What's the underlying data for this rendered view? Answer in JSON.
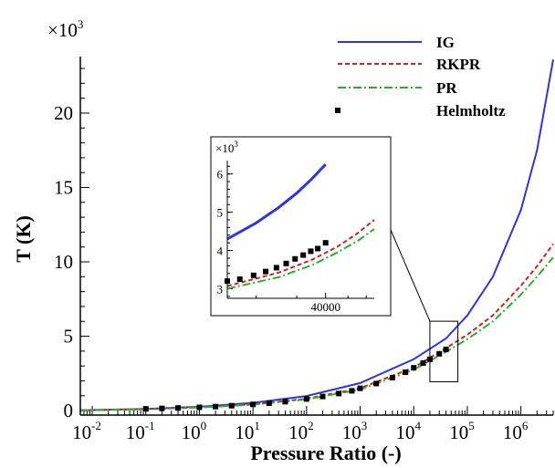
{
  "chart_data": {
    "type": "line",
    "xscale": "log",
    "xlabel": "Pressure Ratio (-)",
    "ylabel": "T (K)",
    "y_multiplier_label": "×10",
    "y_multiplier_exp": "3",
    "xlim": [
      0.006,
      4000000
    ],
    "ylim": [
      -0.3,
      23.8
    ],
    "x_ticks": [
      {
        "value": 0.01,
        "base": "10",
        "exp": "-2"
      },
      {
        "value": 0.1,
        "base": "10",
        "exp": "-1"
      },
      {
        "value": 1,
        "base": "10",
        "exp": "0"
      },
      {
        "value": 10,
        "base": "10",
        "exp": "1"
      },
      {
        "value": 100,
        "base": "10",
        "exp": "2"
      },
      {
        "value": 1000,
        "base": "10",
        "exp": "3"
      },
      {
        "value": 10000,
        "base": "10",
        "exp": "4"
      },
      {
        "value": 100000,
        "base": "10",
        "exp": "5"
      },
      {
        "value": 1000000,
        "base": "10",
        "exp": "6"
      }
    ],
    "y_ticks": [
      {
        "value": 0,
        "label": "0"
      },
      {
        "value": 5,
        "label": "5"
      },
      {
        "value": 10,
        "label": "10"
      },
      {
        "value": 15,
        "label": "15"
      },
      {
        "value": 20,
        "label": "20"
      }
    ],
    "legend_position": "top-right",
    "series": [
      {
        "name": "IG",
        "style": "solid",
        "color": "#2b35e0",
        "x": [
          0.006,
          0.01,
          0.1,
          1,
          10,
          100,
          1000,
          10000,
          40000,
          100000,
          300000,
          1000000,
          2000000,
          4000000
        ],
        "y": [
          0.02,
          0.04,
          0.12,
          0.26,
          0.52,
          0.98,
          1.85,
          3.45,
          4.85,
          6.4,
          9.0,
          13.5,
          17.5,
          23.6
        ]
      },
      {
        "name": "RKPR",
        "style": "dashed",
        "color": "#d42020",
        "x": [
          0.006,
          0.01,
          0.1,
          1,
          10,
          100,
          1000,
          10000,
          40000,
          100000,
          300000,
          1000000,
          2000000,
          4000000
        ],
        "y": [
          0.02,
          0.04,
          0.1,
          0.22,
          0.42,
          0.8,
          1.5,
          2.9,
          4.2,
          5.1,
          6.4,
          8.4,
          9.7,
          11.2
        ]
      },
      {
        "name": "PR",
        "style": "dashdot",
        "color": "#22b422",
        "x": [
          0.006,
          0.01,
          0.1,
          1,
          10,
          100,
          1000,
          10000,
          40000,
          100000,
          300000,
          1000000,
          2000000,
          4000000
        ],
        "y": [
          0.02,
          0.04,
          0.1,
          0.21,
          0.4,
          0.76,
          1.42,
          2.75,
          3.95,
          4.8,
          6.0,
          7.8,
          9.0,
          10.3
        ]
      },
      {
        "name": "Helmholtz",
        "style": "markers",
        "color": "#000000",
        "x": [
          0.1,
          0.2,
          0.4,
          1,
          2,
          4,
          10,
          20,
          40,
          100,
          200,
          400,
          700,
          1000,
          2000,
          4000,
          7000,
          10000,
          15000,
          20000,
          30000,
          40000
        ],
        "y": [
          0.12,
          0.15,
          0.18,
          0.22,
          0.27,
          0.33,
          0.42,
          0.5,
          0.6,
          0.78,
          0.95,
          1.15,
          1.33,
          1.5,
          1.82,
          2.22,
          2.58,
          2.88,
          3.2,
          3.45,
          3.82,
          4.12
        ]
      }
    ],
    "inset": {
      "zoom_box": {
        "xlim": [
          20000,
          45000
        ],
        "ylim": [
          2.8,
          6.5
        ]
      },
      "y_multiplier_label": "×10",
      "y_multiplier_exp": "3",
      "xlim": [
        15000,
        65000
      ],
      "ylim": [
        2.75,
        6.35
      ],
      "x_ticks": [
        {
          "value": 40000,
          "label": "40000"
        }
      ],
      "y_ticks": [
        {
          "value": 3,
          "label": "3"
        },
        {
          "value": 4,
          "label": "4"
        },
        {
          "value": 5,
          "label": "5"
        },
        {
          "value": 6,
          "label": "6"
        }
      ],
      "series": [
        {
          "name": "IG",
          "style": "solid",
          "color": "#2b35e0",
          "x": [
            15000,
            20000,
            25000,
            30000,
            35000,
            40000
          ],
          "y": [
            4.3,
            4.72,
            5.12,
            5.5,
            5.88,
            6.25
          ]
        },
        {
          "name": "RKPR",
          "style": "dashed",
          "color": "#d42020",
          "x": [
            15000,
            25000,
            35000,
            45000,
            55000,
            65000
          ],
          "y": [
            3.07,
            3.42,
            3.76,
            4.1,
            4.45,
            4.8
          ]
        },
        {
          "name": "PR",
          "style": "dashdot",
          "color": "#22b422",
          "x": [
            15000,
            25000,
            35000,
            45000,
            55000,
            65000
          ],
          "y": [
            3.0,
            3.3,
            3.62,
            3.95,
            4.25,
            4.56
          ]
        },
        {
          "name": "Helmholtz",
          "style": "markers",
          "color": "#000000",
          "x": [
            15000,
            17000,
            19500,
            22000,
            24500,
            27000,
            29500,
            32000,
            34500,
            37000,
            40000
          ],
          "y": [
            3.2,
            3.25,
            3.35,
            3.45,
            3.55,
            3.66,
            3.78,
            3.88,
            3.98,
            4.05,
            4.2
          ]
        }
      ]
    }
  }
}
